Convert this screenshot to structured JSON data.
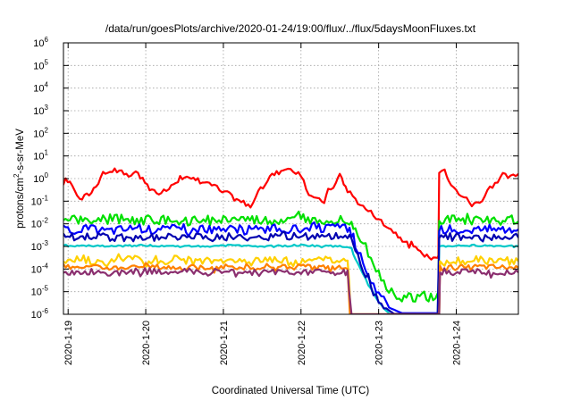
{
  "chart_data": {
    "type": "line",
    "title": "/data/run/goesPlots/archive/2020-01-24/19:00/flux/../flux/5daysMoonFluxes.txt",
    "xlabel": "Coordinated Universal Time (UTC)",
    "ylabel_main": "protons/cm",
    "ylabel_sup": "2",
    "ylabel_tail": "-s-sr-MeV",
    "x_ticks": [
      {
        "day": 1,
        "label": "2020-1-19"
      },
      {
        "day": 2,
        "label": "2020-1-20"
      },
      {
        "day": 3,
        "label": "2020-1-21"
      },
      {
        "day": 4,
        "label": "2020-1-22"
      },
      {
        "day": 5,
        "label": "2020-1-23"
      },
      {
        "day": 6,
        "label": "2020-1-24"
      }
    ],
    "y_ticks": [
      {
        "exp": -6,
        "base": "10",
        "sup": "-6"
      },
      {
        "exp": -5,
        "base": "10",
        "sup": "-5"
      },
      {
        "exp": -4,
        "base": "10",
        "sup": "-4"
      },
      {
        "exp": -3,
        "base": "10",
        "sup": "-3"
      },
      {
        "exp": -2,
        "base": "10",
        "sup": "-2"
      },
      {
        "exp": -1,
        "base": "10",
        "sup": "-1"
      },
      {
        "exp": 0,
        "base": "10",
        "sup": "0"
      },
      {
        "exp": 1,
        "base": "10",
        "sup": "1"
      },
      {
        "exp": 2,
        "base": "10",
        "sup": "2"
      },
      {
        "exp": 3,
        "base": "10",
        "sup": "3"
      },
      {
        "exp": 4,
        "base": "10",
        "sup": "4"
      },
      {
        "exp": 5,
        "base": "10",
        "sup": "5"
      },
      {
        "exp": 6,
        "base": "10",
        "sup": "6"
      }
    ],
    "xlim_days": [
      0.94,
      6.8
    ],
    "ylim_log10": [
      -6,
      6
    ],
    "y_scale": "log",
    "grid": true,
    "series": [
      {
        "color": "#ff0000",
        "points": [
          [
            0.94,
            -0.05
          ],
          [
            1.05,
            -0.2
          ],
          [
            1.15,
            -0.95
          ],
          [
            1.3,
            -0.6
          ],
          [
            1.45,
            0.2
          ],
          [
            1.6,
            0.4
          ],
          [
            1.75,
            0.1
          ],
          [
            1.9,
            0.25
          ],
          [
            2.05,
            -0.45
          ],
          [
            2.2,
            -0.65
          ],
          [
            2.3,
            -0.35
          ],
          [
            2.5,
            0.15
          ],
          [
            2.7,
            -0.1
          ],
          [
            2.85,
            -0.2
          ],
          [
            2.95,
            -0.5
          ],
          [
            3.05,
            -0.65
          ],
          [
            3.2,
            -1.0
          ],
          [
            3.35,
            -1.15
          ],
          [
            3.45,
            -0.65
          ],
          [
            3.6,
            0.1
          ],
          [
            3.8,
            0.45
          ],
          [
            3.9,
            0.4
          ],
          [
            4.0,
            0.05
          ],
          [
            4.1,
            -0.65
          ],
          [
            4.2,
            -0.95
          ],
          [
            4.3,
            -1.0
          ],
          [
            4.35,
            -0.55
          ],
          [
            4.45,
            -0.2
          ],
          [
            4.5,
            0.2
          ],
          [
            4.55,
            -0.2
          ],
          [
            4.6,
            -0.5
          ],
          [
            4.7,
            -0.9
          ],
          [
            4.8,
            -1.25
          ],
          [
            4.9,
            -1.5
          ],
          [
            5.0,
            -1.75
          ],
          [
            5.1,
            -2.05
          ],
          [
            5.25,
            -2.5
          ],
          [
            5.45,
            -3.05
          ],
          [
            5.65,
            -3.45
          ],
          [
            5.76,
            -3.5
          ],
          [
            5.77,
            -3.4
          ],
          [
            5.78,
            0.35
          ],
          [
            5.85,
            0.45
          ],
          [
            5.9,
            -0.15
          ],
          [
            6.0,
            -0.55
          ],
          [
            6.1,
            -0.8
          ],
          [
            6.2,
            -1.15
          ],
          [
            6.3,
            -1.05
          ],
          [
            6.4,
            -0.55
          ],
          [
            6.5,
            -0.3
          ],
          [
            6.6,
            0.15
          ],
          [
            6.7,
            0.05
          ],
          [
            6.8,
            0.2
          ]
        ]
      },
      {
        "color": "#00e000",
        "points": [
          [
            0.94,
            -1.8
          ],
          [
            1.3,
            -1.9
          ],
          [
            1.6,
            -1.75
          ],
          [
            2.0,
            -1.85
          ],
          [
            2.4,
            -1.8
          ],
          [
            2.8,
            -1.85
          ],
          [
            3.2,
            -1.8
          ],
          [
            3.6,
            -1.9
          ],
          [
            4.0,
            -1.75
          ],
          [
            4.3,
            -1.8
          ],
          [
            4.6,
            -1.8
          ],
          [
            4.65,
            -1.85
          ],
          [
            4.7,
            -2.25
          ],
          [
            4.8,
            -2.85
          ],
          [
            4.9,
            -3.5
          ],
          [
            5.0,
            -4.25
          ],
          [
            5.1,
            -4.75
          ],
          [
            5.2,
            -5.1
          ],
          [
            5.3,
            -5.25
          ],
          [
            5.5,
            -5.25
          ],
          [
            5.76,
            -5.25
          ],
          [
            5.77,
            -5.2
          ],
          [
            5.78,
            -1.9
          ],
          [
            6.0,
            -1.8
          ],
          [
            6.4,
            -1.85
          ],
          [
            6.8,
            -1.9
          ]
        ]
      },
      {
        "color": "#0000ff",
        "points": [
          [
            0.94,
            -2.25
          ],
          [
            1.2,
            -2.2
          ],
          [
            1.5,
            -2.3
          ],
          [
            1.8,
            -2.2
          ],
          [
            2.1,
            -2.25
          ],
          [
            2.4,
            -2.2
          ],
          [
            2.7,
            -2.25
          ],
          [
            3.0,
            -2.2
          ],
          [
            3.3,
            -2.25
          ],
          [
            3.6,
            -2.2
          ],
          [
            3.9,
            -2.25
          ],
          [
            4.2,
            -2.2
          ],
          [
            4.5,
            -2.2
          ],
          [
            4.6,
            -2.2
          ],
          [
            4.65,
            -2.3
          ],
          [
            4.7,
            -2.9
          ],
          [
            4.8,
            -3.7
          ],
          [
            4.9,
            -4.5
          ],
          [
            5.0,
            -5.1
          ],
          [
            5.1,
            -5.5
          ],
          [
            5.2,
            -5.8
          ],
          [
            5.3,
            -5.95
          ],
          [
            5.5,
            -5.95
          ],
          [
            5.76,
            -5.95
          ],
          [
            5.77,
            -5.9
          ],
          [
            5.78,
            -2.2
          ],
          [
            6.0,
            -2.25
          ],
          [
            6.4,
            -2.2
          ],
          [
            6.8,
            -2.25
          ]
        ]
      },
      {
        "color": "#00c8c8",
        "points": [
          [
            0.94,
            -2.95
          ],
          [
            1.5,
            -3.0
          ],
          [
            2.0,
            -2.95
          ],
          [
            2.5,
            -3.0
          ],
          [
            3.0,
            -2.95
          ],
          [
            3.5,
            -3.0
          ],
          [
            4.0,
            -2.95
          ],
          [
            4.5,
            -3.0
          ],
          [
            4.6,
            -3.0
          ],
          [
            4.65,
            -3.1
          ],
          [
            4.7,
            -3.55
          ],
          [
            4.8,
            -4.25
          ],
          [
            4.9,
            -4.9
          ],
          [
            5.0,
            -5.45
          ],
          [
            5.1,
            -5.85
          ],
          [
            5.15,
            -6.0
          ],
          [
            5.76,
            -6.0
          ],
          [
            5.78,
            -3.0
          ],
          [
            6.2,
            -2.95
          ],
          [
            6.8,
            -3.0
          ]
        ]
      },
      {
        "color": "#0000b0",
        "points": [
          [
            0.94,
            -2.6
          ],
          [
            1.3,
            -2.55
          ],
          [
            1.6,
            -2.65
          ],
          [
            1.9,
            -2.55
          ],
          [
            2.2,
            -2.6
          ],
          [
            2.5,
            -2.55
          ],
          [
            2.8,
            -2.6
          ],
          [
            3.1,
            -2.55
          ],
          [
            3.4,
            -2.6
          ],
          [
            3.7,
            -2.55
          ],
          [
            4.0,
            -2.6
          ],
          [
            4.3,
            -2.55
          ],
          [
            4.6,
            -2.55
          ],
          [
            4.65,
            -2.65
          ],
          [
            4.7,
            -3.2
          ],
          [
            4.8,
            -4.0
          ],
          [
            4.9,
            -4.8
          ],
          [
            5.0,
            -5.35
          ],
          [
            5.1,
            -5.75
          ],
          [
            5.2,
            -5.98
          ],
          [
            5.76,
            -6.0
          ],
          [
            5.78,
            -2.6
          ],
          [
            6.2,
            -2.55
          ],
          [
            6.8,
            -2.6
          ]
        ]
      },
      {
        "color": "#ffd000",
        "points": [
          [
            0.94,
            -3.65
          ],
          [
            1.2,
            -3.55
          ],
          [
            1.5,
            -3.75
          ],
          [
            1.8,
            -3.55
          ],
          [
            2.1,
            -3.7
          ],
          [
            2.4,
            -3.55
          ],
          [
            2.7,
            -3.7
          ],
          [
            3.0,
            -3.6
          ],
          [
            3.3,
            -3.7
          ],
          [
            3.6,
            -3.55
          ],
          [
            3.9,
            -3.7
          ],
          [
            4.2,
            -3.6
          ],
          [
            4.55,
            -3.65
          ],
          [
            4.6,
            -3.7
          ],
          [
            4.62,
            -4.5
          ],
          [
            4.64,
            -6.0
          ],
          [
            5.78,
            -6.0
          ],
          [
            5.79,
            -3.7
          ],
          [
            6.2,
            -3.6
          ],
          [
            6.8,
            -3.65
          ]
        ]
      },
      {
        "color": "#ff8000",
        "points": [
          [
            0.94,
            -3.9
          ],
          [
            1.5,
            -3.95
          ],
          [
            2.0,
            -3.9
          ],
          [
            2.5,
            -3.95
          ],
          [
            3.0,
            -3.9
          ],
          [
            3.5,
            -3.95
          ],
          [
            4.0,
            -3.9
          ],
          [
            4.55,
            -3.95
          ],
          [
            4.6,
            -4.0
          ],
          [
            4.63,
            -6.0
          ],
          [
            5.78,
            -6.0
          ],
          [
            5.79,
            -3.95
          ],
          [
            6.3,
            -3.9
          ],
          [
            6.8,
            -3.95
          ]
        ]
      },
      {
        "color": "#8b2f6f",
        "points": [
          [
            0.94,
            -4.15
          ],
          [
            1.3,
            -4.1
          ],
          [
            1.6,
            -4.2
          ],
          [
            1.9,
            -4.05
          ],
          [
            2.2,
            -4.15
          ],
          [
            2.5,
            -4.1
          ],
          [
            2.8,
            -4.15
          ],
          [
            3.1,
            -4.05
          ],
          [
            3.4,
            -4.15
          ],
          [
            3.7,
            -4.1
          ],
          [
            4.0,
            -4.15
          ],
          [
            4.3,
            -4.1
          ],
          [
            4.55,
            -4.15
          ],
          [
            4.6,
            -4.2
          ],
          [
            4.62,
            -5.0
          ],
          [
            4.65,
            -6.0
          ],
          [
            5.78,
            -6.0
          ],
          [
            5.79,
            -4.15
          ],
          [
            6.3,
            -4.1
          ],
          [
            6.8,
            -4.15
          ]
        ]
      }
    ]
  }
}
